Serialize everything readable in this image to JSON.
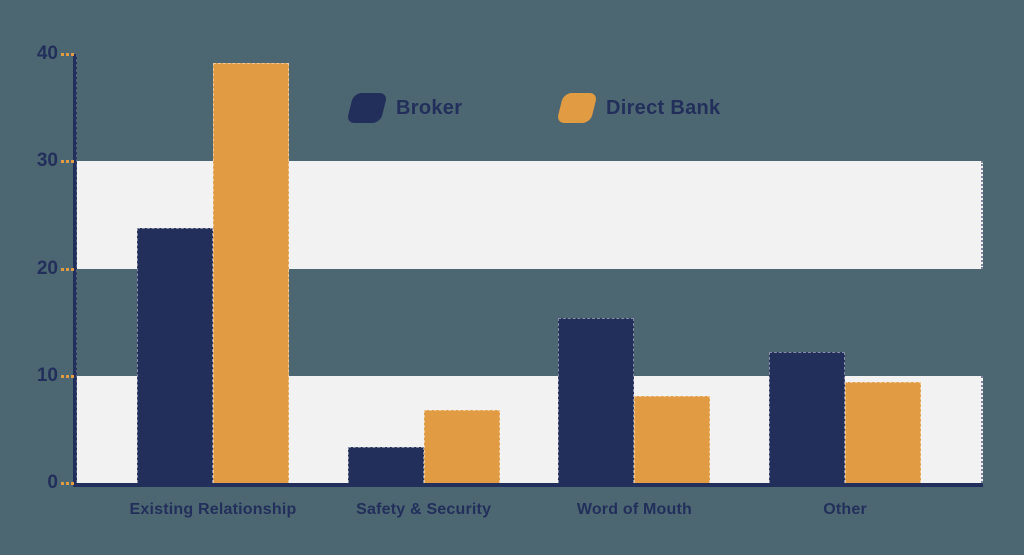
{
  "colors": {
    "background": "#4c6771",
    "navy": "#232f5b",
    "orange": "#e09b43",
    "band": "#f2f2f3",
    "text": "#232f5b",
    "tick": "#e09b43"
  },
  "legend": {
    "items": [
      {
        "label": "Broker",
        "color": "#232f5b"
      },
      {
        "label": "Direct Bank",
        "color": "#e09b43"
      }
    ]
  },
  "chart_data": {
    "type": "bar",
    "categories": [
      "Existing Relationship",
      "Safety & Security",
      "Word of Mouth",
      "Other"
    ],
    "series": [
      {
        "name": "Broker",
        "color": "#232f5b",
        "values": [
          23.8,
          3.4,
          15.4,
          12.2
        ]
      },
      {
        "name": "Direct Bank",
        "color": "#e09b43",
        "values": [
          39.2,
          6.8,
          8.1,
          9.4
        ]
      }
    ],
    "title": "",
    "xlabel": "",
    "ylabel": "",
    "ylim": [
      0,
      40
    ],
    "yticks": [
      0,
      10,
      20,
      30,
      40
    ],
    "grid": "off",
    "shaded_bands": [
      [
        0,
        10
      ],
      [
        20,
        30
      ]
    ],
    "band_color": "#f2f2f3",
    "axis_color": "#232f5b",
    "tick_color": "#e09b43",
    "legend_position": "top-center"
  }
}
